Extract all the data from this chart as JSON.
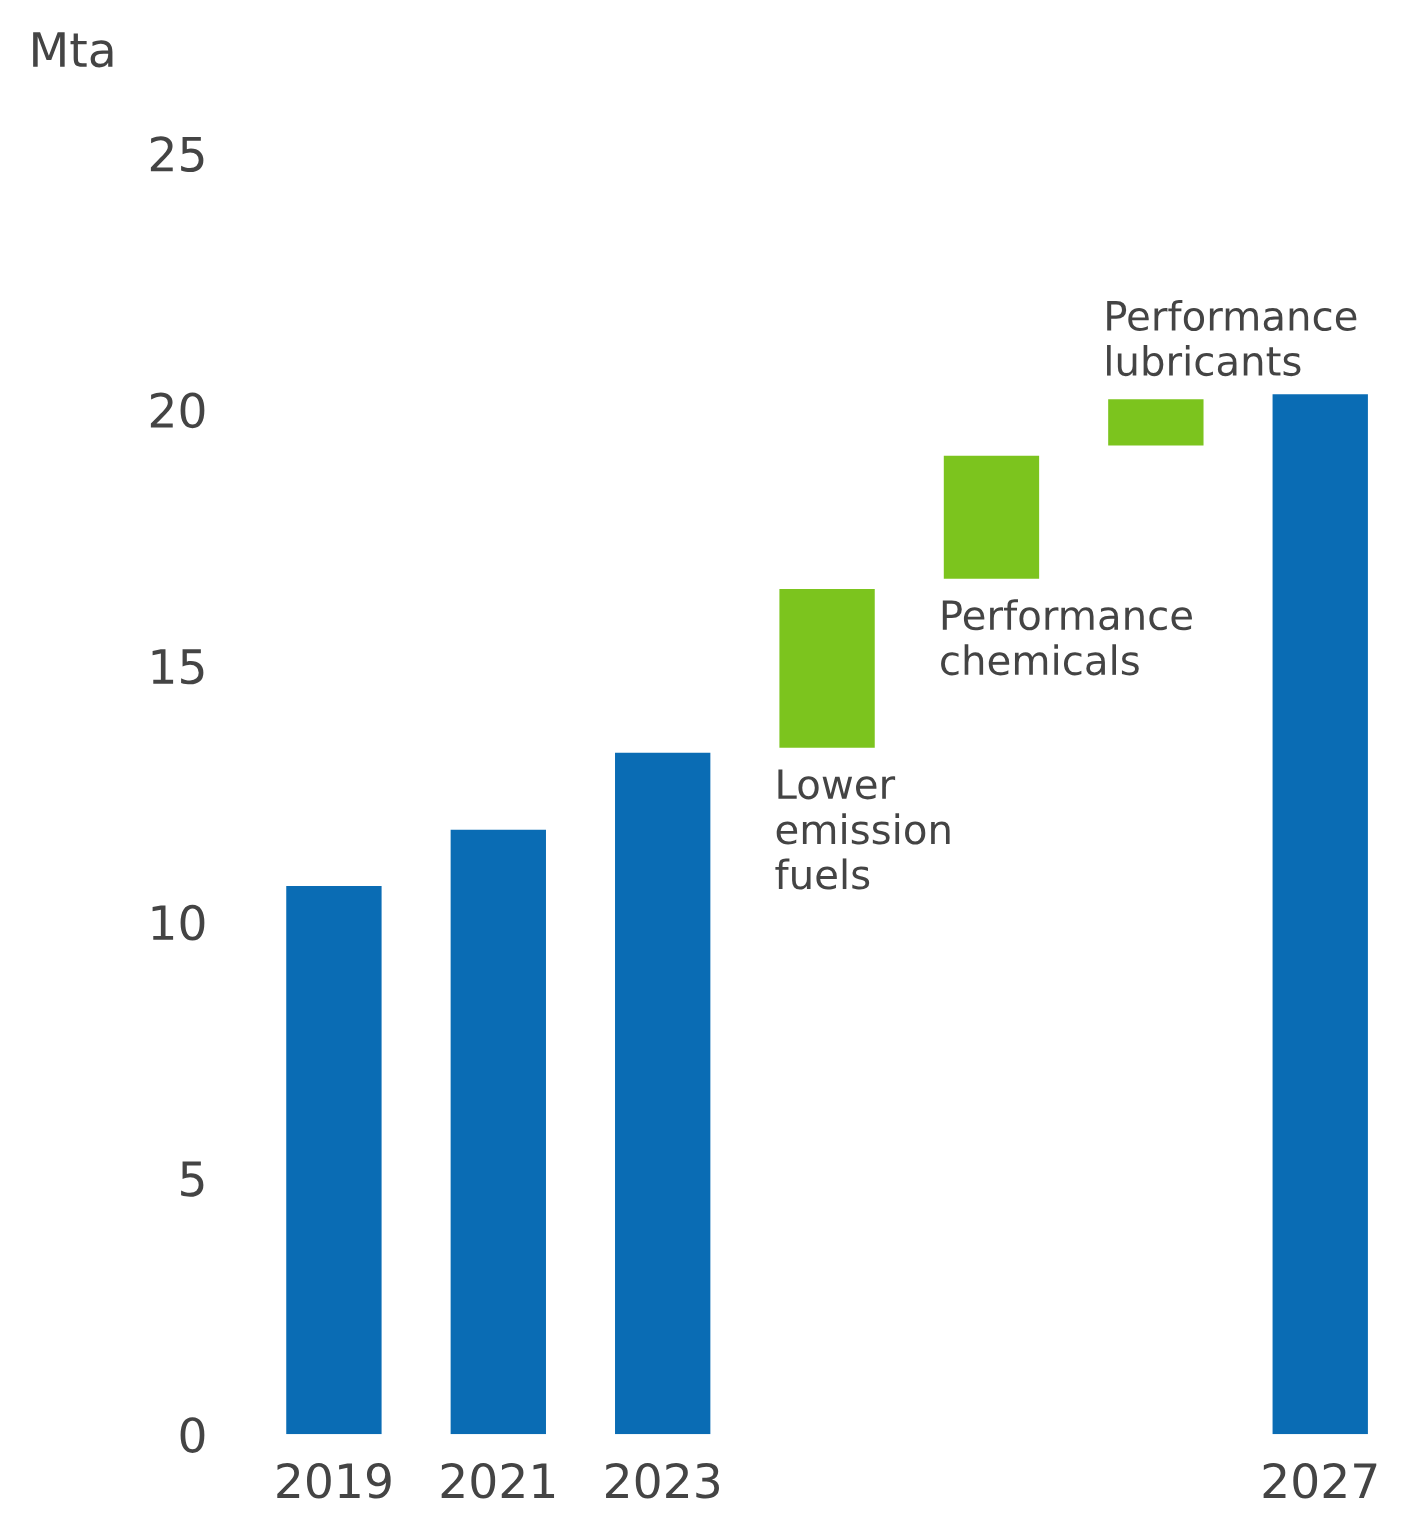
{
  "chart_data": {
    "type": "bar",
    "ylabel": "Mta",
    "categories": [
      "2019",
      "2021",
      "2023",
      null,
      null,
      null,
      "2027"
    ],
    "values": [
      10.7,
      11.8,
      13.3,
      3.1,
      2.4,
      0.9,
      20.3
    ],
    "base": [
      0,
      0,
      0,
      13.4,
      16.7,
      19.3,
      0
    ],
    "colors": [
      "#0a6cb4",
      "#0a6cb4",
      "#0a6cb4",
      "#7cc41e",
      "#7cc41e",
      "#7cc41e",
      "#0a6cb4"
    ],
    "ylim": [
      0,
      25
    ],
    "yticks": [
      0,
      5,
      10,
      15,
      20,
      25
    ],
    "grid": false,
    "legend": false,
    "annotations": [
      "Lower\nemission\nfuels",
      "Performance\nchemicals",
      "Performance\nlubricants"
    ]
  }
}
